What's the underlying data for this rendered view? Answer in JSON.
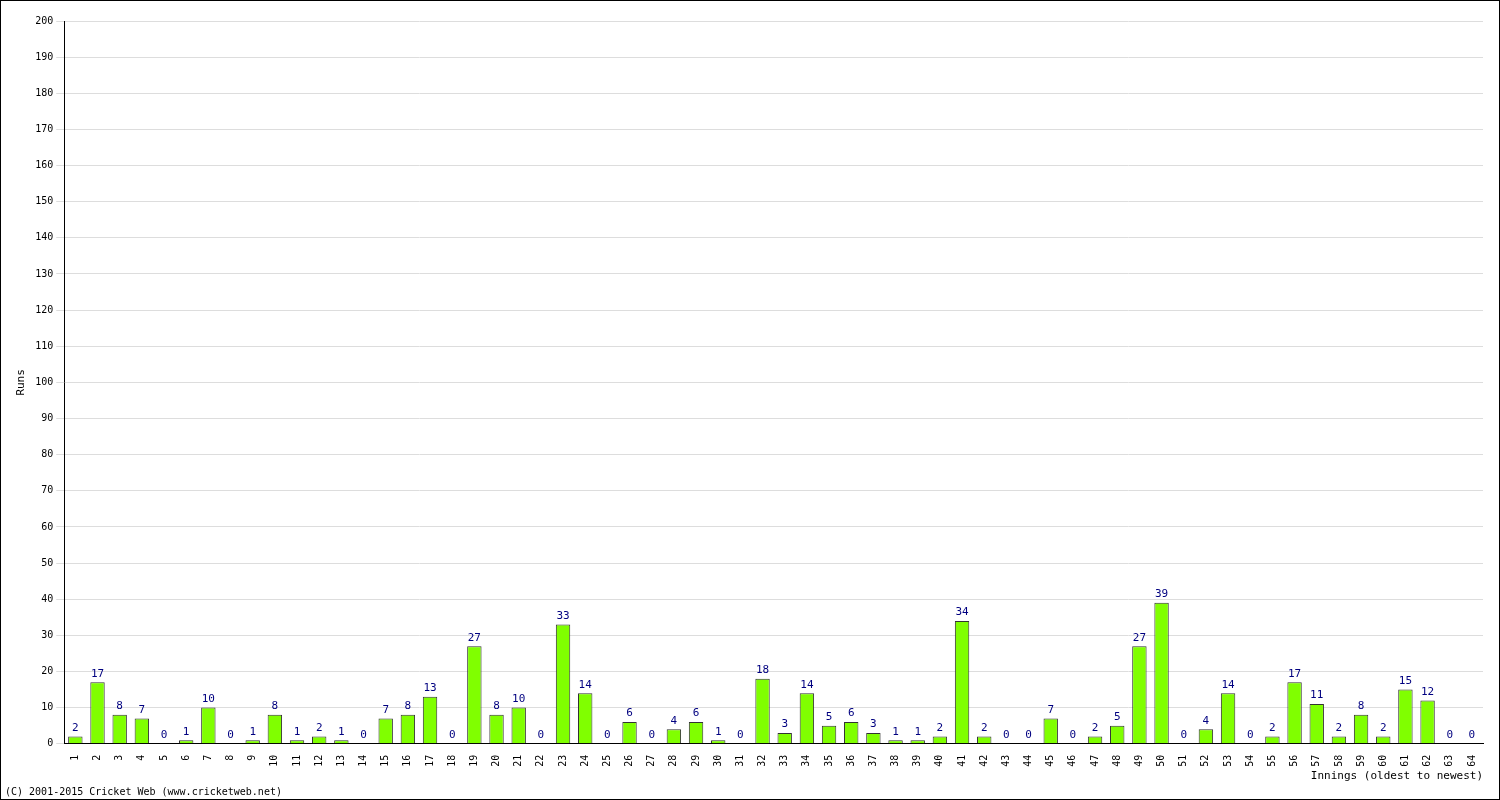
{
  "chart_data": {
    "type": "bar",
    "categories": [
      "1",
      "2",
      "3",
      "4",
      "5",
      "6",
      "7",
      "8",
      "9",
      "10",
      "11",
      "12",
      "13",
      "14",
      "15",
      "16",
      "17",
      "18",
      "19",
      "20",
      "21",
      "22",
      "23",
      "24",
      "25",
      "26",
      "27",
      "28",
      "29",
      "30",
      "31",
      "32",
      "33",
      "34",
      "35",
      "36",
      "37",
      "38",
      "39",
      "40",
      "41",
      "42",
      "43",
      "44",
      "45",
      "46",
      "47",
      "48",
      "49",
      "50",
      "51",
      "52",
      "53",
      "54",
      "55",
      "56",
      "57",
      "58",
      "59",
      "60",
      "61",
      "62",
      "63",
      "64"
    ],
    "values": [
      2,
      17,
      8,
      7,
      0,
      1,
      10,
      0,
      1,
      8,
      1,
      2,
      1,
      0,
      7,
      8,
      13,
      0,
      27,
      8,
      10,
      0,
      33,
      14,
      0,
      6,
      0,
      4,
      6,
      1,
      0,
      18,
      3,
      14,
      5,
      6,
      3,
      1,
      1,
      2,
      34,
      2,
      0,
      0,
      7,
      0,
      2,
      5,
      27,
      39,
      0,
      4,
      14,
      0,
      2,
      17,
      11,
      2,
      8,
      2,
      15,
      12,
      0,
      0
    ],
    "color": "#80ff00",
    "x_label": "Innings (oldest to newest)",
    "y_label": "Runs",
    "ylim": [
      0,
      200
    ],
    "yticks": [
      0,
      10,
      20,
      30,
      40,
      50,
      60,
      70,
      80,
      90,
      100,
      110,
      120,
      130,
      140,
      150,
      160,
      170,
      180,
      190,
      200
    ],
    "grid": true,
    "data_labels": true,
    "annotations": [
      "(C) 2001-2015 Cricket Web (www.cricketweb.net)"
    ]
  }
}
